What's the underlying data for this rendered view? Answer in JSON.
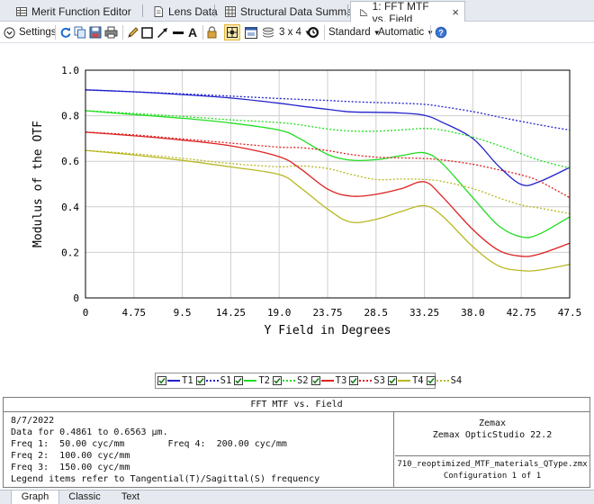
{
  "tabs": [
    {
      "label": "Merit Function Editor",
      "icon": "table-icon"
    },
    {
      "label": "Lens Data",
      "icon": "document-icon"
    },
    {
      "label": "Structural Data Summary",
      "icon": "grid-icon"
    },
    {
      "label": "1: FFT MTF vs. Field",
      "icon": "mtf-chart-icon",
      "active": true
    }
  ],
  "tab_close": "×",
  "toolbar": {
    "settings_label": "Settings",
    "layout_label": "3 x 4",
    "standard_label": "Standard",
    "automatic_label": "Automatic",
    "text_tool": "A"
  },
  "chart_data": {
    "type": "line",
    "xlabel": "Y Field in Degrees",
    "ylabel": "Modulus of the OTF",
    "xlim": [
      0,
      47.5
    ],
    "ylim": [
      0,
      1.0
    ],
    "x_ticks": [
      "0",
      "4.75",
      "9.5",
      "14.25",
      "19.0",
      "23.75",
      "28.5",
      "33.25",
      "38.0",
      "42.75",
      "47.5"
    ],
    "y_ticks": [
      "0",
      "0.2",
      "0.4",
      "0.6",
      "0.8",
      "1.0"
    ],
    "grid": true,
    "x": [
      0,
      4.75,
      9.5,
      14.25,
      19.0,
      21.0,
      23.75,
      26.0,
      28.5,
      31.0,
      33.25,
      35.0,
      38.0,
      40.5,
      42.75,
      44.5,
      47.5
    ],
    "series": [
      {
        "name": "T1",
        "color": "#2222cc",
        "dash": false,
        "values": [
          0.914,
          0.905,
          0.893,
          0.878,
          0.855,
          0.843,
          0.828,
          0.817,
          0.815,
          0.812,
          0.802,
          0.771,
          0.7,
          0.58,
          0.498,
          0.51,
          0.573
        ]
      },
      {
        "name": "S1",
        "color": "#2222cc",
        "dash": true,
        "values": [
          0.913,
          0.905,
          0.896,
          0.886,
          0.876,
          0.872,
          0.867,
          0.862,
          0.858,
          0.855,
          0.85,
          0.84,
          0.818,
          0.795,
          0.775,
          0.76,
          0.737
        ]
      },
      {
        "name": "T2",
        "color": "#22dd22",
        "dash": false,
        "values": [
          0.822,
          0.805,
          0.789,
          0.768,
          0.737,
          0.7,
          0.63,
          0.605,
          0.607,
          0.625,
          0.637,
          0.59,
          0.44,
          0.318,
          0.268,
          0.28,
          0.356
        ]
      },
      {
        "name": "S2",
        "color": "#22dd22",
        "dash": true,
        "values": [
          0.822,
          0.81,
          0.797,
          0.782,
          0.77,
          0.76,
          0.742,
          0.733,
          0.732,
          0.738,
          0.744,
          0.737,
          0.706,
          0.67,
          0.633,
          0.605,
          0.57
        ]
      },
      {
        "name": "T3",
        "color": "#dd2222",
        "dash": false,
        "values": [
          0.728,
          0.712,
          0.693,
          0.668,
          0.62,
          0.57,
          0.478,
          0.447,
          0.455,
          0.48,
          0.51,
          0.445,
          0.3,
          0.21,
          0.183,
          0.192,
          0.24
        ]
      },
      {
        "name": "S3",
        "color": "#dd2222",
        "dash": true,
        "values": [
          0.728,
          0.716,
          0.698,
          0.68,
          0.662,
          0.66,
          0.647,
          0.63,
          0.618,
          0.615,
          0.612,
          0.606,
          0.587,
          0.563,
          0.54,
          0.513,
          0.44
        ]
      },
      {
        "name": "T4",
        "color": "#b8b822",
        "dash": false,
        "values": [
          0.648,
          0.628,
          0.604,
          0.575,
          0.542,
          0.487,
          0.39,
          0.333,
          0.345,
          0.38,
          0.405,
          0.36,
          0.225,
          0.141,
          0.12,
          0.122,
          0.147
        ]
      },
      {
        "name": "S4",
        "color": "#b8b822",
        "dash": true,
        "values": [
          0.648,
          0.633,
          0.613,
          0.59,
          0.576,
          0.58,
          0.568,
          0.543,
          0.52,
          0.522,
          0.52,
          0.512,
          0.48,
          0.44,
          0.408,
          0.395,
          0.37
        ]
      }
    ]
  },
  "legend": [
    {
      "label": "T1",
      "color": "#2222cc",
      "dash": false
    },
    {
      "label": "S1",
      "color": "#2222cc",
      "dash": true
    },
    {
      "label": "T2",
      "color": "#22dd22",
      "dash": false
    },
    {
      "label": "S2",
      "color": "#22dd22",
      "dash": true
    },
    {
      "label": "T3",
      "color": "#dd2222",
      "dash": false
    },
    {
      "label": "S3",
      "color": "#dd2222",
      "dash": true
    },
    {
      "label": "T4",
      "color": "#b8b822",
      "dash": false
    },
    {
      "label": "S4",
      "color": "#b8b822",
      "dash": true
    }
  ],
  "info": {
    "title": "FFT MTF vs. Field",
    "date": "8/7/2022",
    "data_for": "Data for 0.4861 to 0.6563 µm.",
    "freq1": "Freq 1:  50.00 cyc/mm",
    "freq4": "Freq 4:  200.00 cyc/mm",
    "freq2": "Freq 2:  100.00 cyc/mm",
    "freq3": "Freq 3:  150.00 cyc/mm",
    "legend_note": "Legend items refer to Tangential(T)/Sagittal(S) frequency",
    "company": "Zemax",
    "product": "Zemax OpticStudio 22.2",
    "filename": "710_reoptimized_MTF_materials_QType.zmx",
    "configuration": "Configuration 1 of 1"
  },
  "bottom_tabs": [
    {
      "label": "Graph",
      "active": true
    },
    {
      "label": "Classic",
      "active": false
    },
    {
      "label": "Text",
      "active": false
    }
  ]
}
